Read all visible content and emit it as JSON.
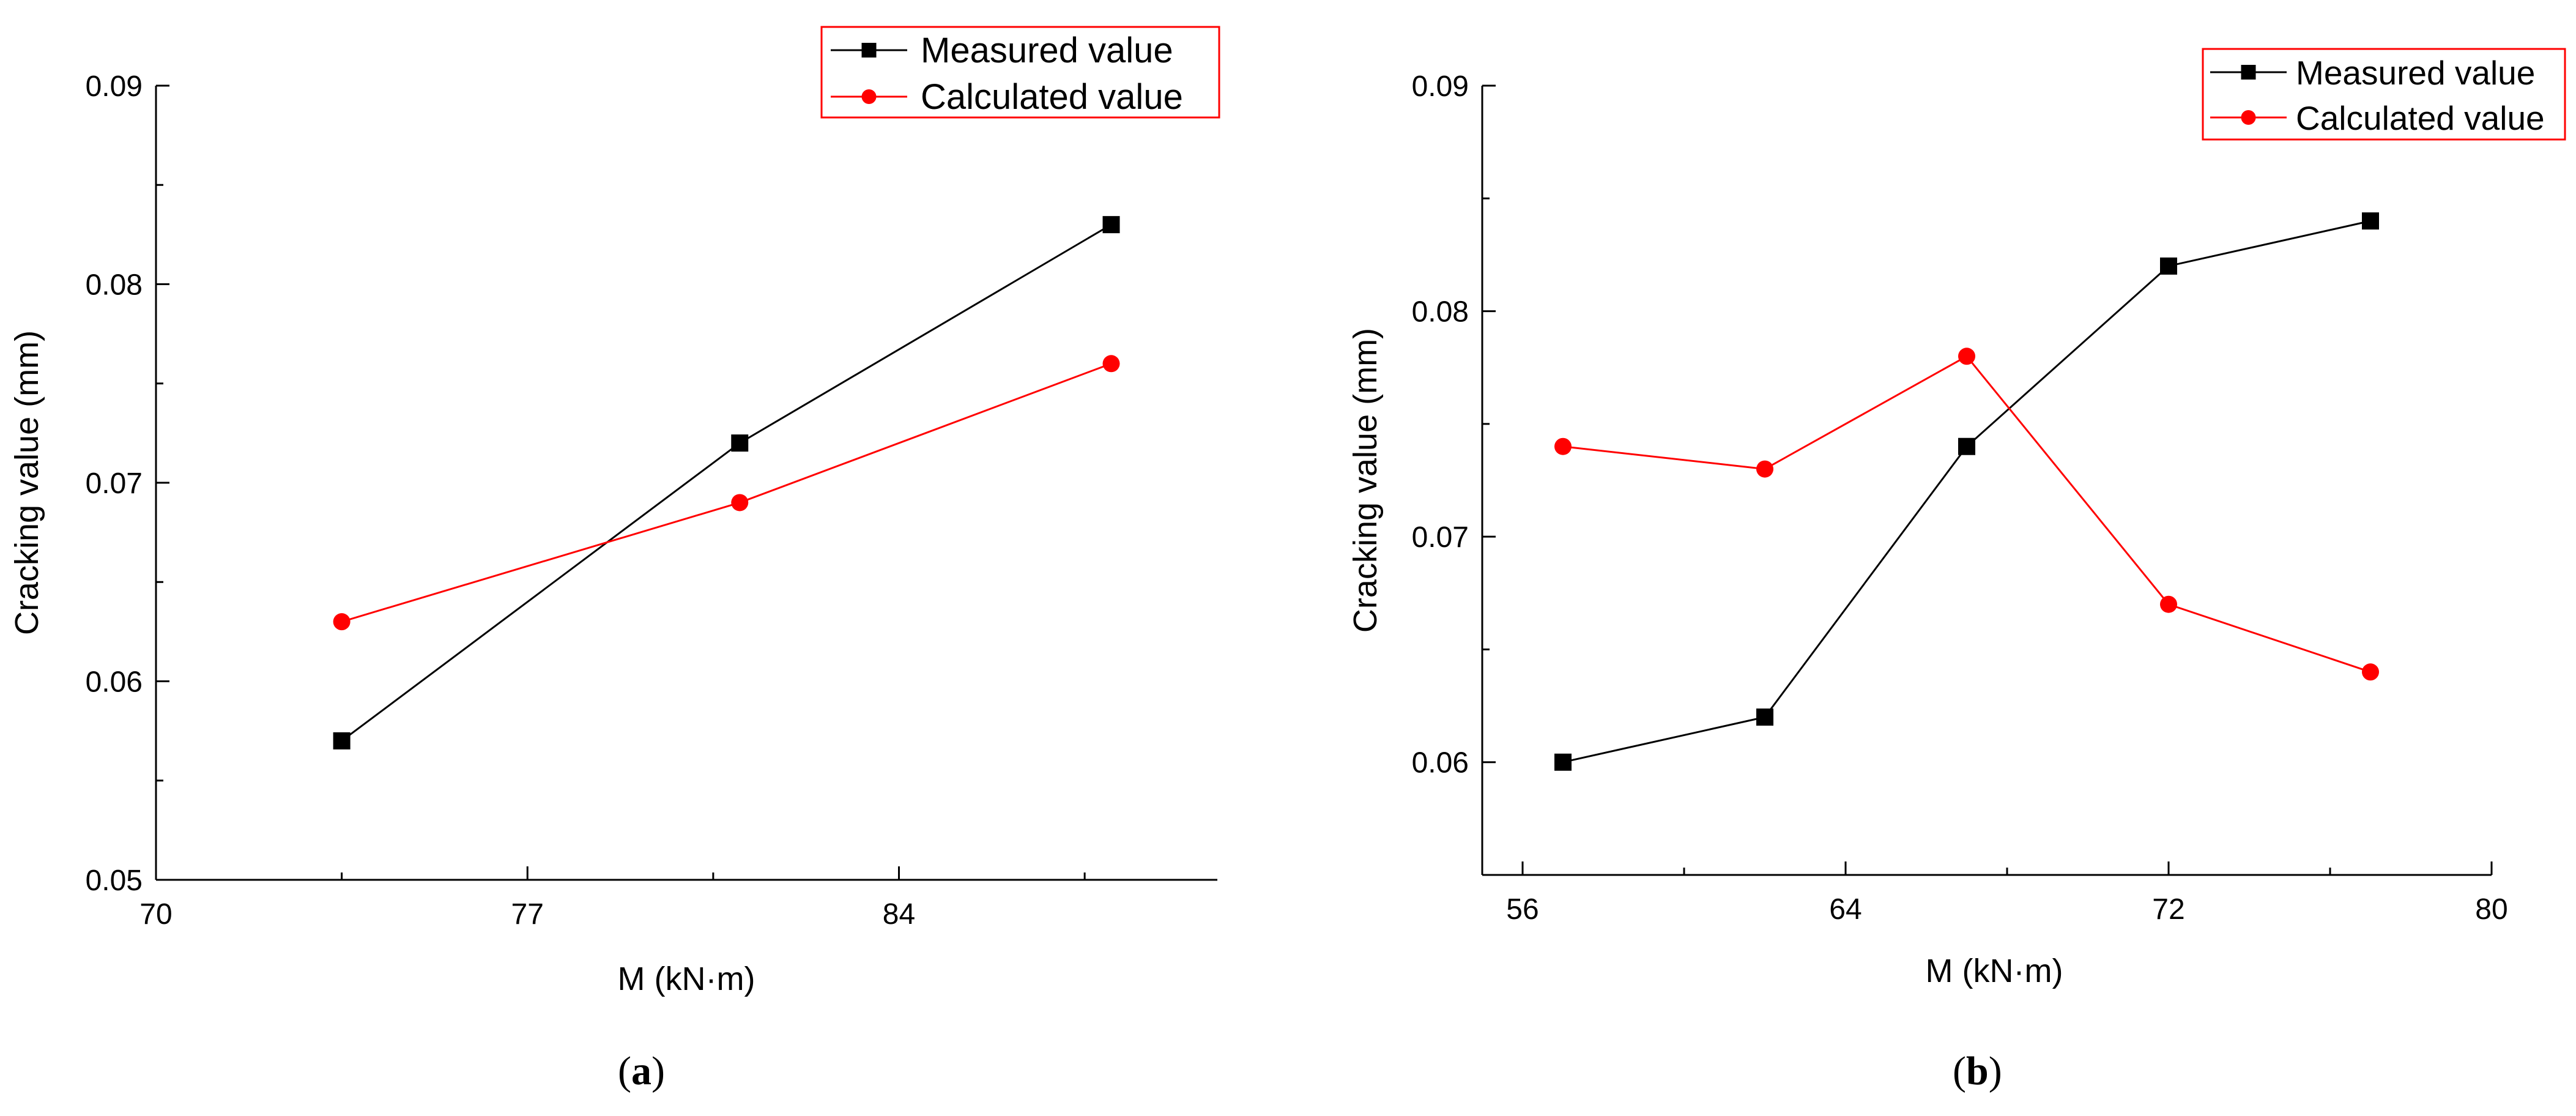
{
  "colors": {
    "measured": "#000000",
    "calculated": "#ff0000",
    "axis": "#000000",
    "legend_frame": "#ff0000",
    "background": "#ffffff"
  },
  "chart_data": [
    {
      "type": "line",
      "panel_label": "a",
      "xlabel": "M (kN·m)",
      "ylabel": "Cracking value (mm)",
      "xlim": [
        70,
        90
      ],
      "ylim": [
        0.05,
        0.09
      ],
      "xticks": [
        70,
        77,
        84
      ],
      "xtick_labels": [
        "70",
        "77",
        "84"
      ],
      "yticks": [
        0.05,
        0.06,
        0.07,
        0.08,
        0.09
      ],
      "ytick_labels": [
        "0.05",
        "0.06",
        "0.07",
        "0.08",
        "0.09"
      ],
      "legend_position": "top-right",
      "series": [
        {
          "name": "Measured value",
          "marker": "square",
          "color": "#000000",
          "x": [
            73.5,
            81,
            88
          ],
          "y": [
            0.057,
            0.072,
            0.083
          ]
        },
        {
          "name": "Calculated value",
          "marker": "circle",
          "color": "#ff0000",
          "x": [
            73.5,
            81,
            88
          ],
          "y": [
            0.063,
            0.069,
            0.076
          ]
        }
      ]
    },
    {
      "type": "line",
      "panel_label": "b",
      "xlabel": "M (kN·m)",
      "ylabel": "Cracking value (mm)",
      "xlim": [
        55,
        80
      ],
      "ylim": [
        0.055,
        0.09
      ],
      "xticks": [
        56,
        64,
        72,
        80
      ],
      "xtick_labels": [
        "56",
        "64",
        "72",
        "80"
      ],
      "yticks": [
        0.06,
        0.07,
        0.08,
        0.09
      ],
      "ytick_labels": [
        "0.06",
        "0.07",
        "0.08",
        "0.09"
      ],
      "legend_position": "top-right",
      "series": [
        {
          "name": "Measured value",
          "marker": "square",
          "color": "#000000",
          "x": [
            57,
            62,
            67,
            72,
            77
          ],
          "y": [
            0.06,
            0.062,
            0.074,
            0.082,
            0.084
          ]
        },
        {
          "name": "Calculated value",
          "marker": "circle",
          "color": "#ff0000",
          "x": [
            57,
            62,
            67,
            72,
            77
          ],
          "y": [
            0.074,
            0.073,
            0.078,
            0.067,
            0.064
          ]
        }
      ]
    }
  ]
}
